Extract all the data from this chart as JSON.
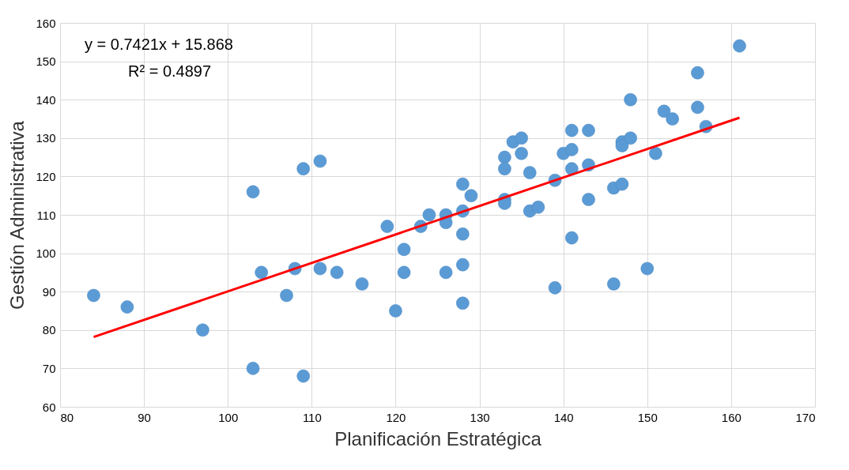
{
  "chart_data": {
    "type": "scatter",
    "xlabel": "Planificación Estratégica",
    "ylabel": "Gestión Administrativa",
    "annotations": [
      "y = 0.7421x + 15.868",
      "R² = 0.4897"
    ],
    "xlim": [
      80,
      170
    ],
    "xticks": [
      80,
      90,
      100,
      110,
      120,
      130,
      140,
      150,
      160,
      170
    ],
    "ylim": [
      60,
      160
    ],
    "yticks": [
      60,
      70,
      80,
      90,
      100,
      110,
      120,
      130,
      140,
      150,
      160
    ],
    "grid": true,
    "series": [
      {
        "marker": "circle",
        "color": "#5b9bd5",
        "x": [
          84,
          88,
          97,
          103,
          103,
          104,
          107,
          108,
          109,
          109,
          111,
          111,
          113,
          116,
          119,
          120,
          121,
          121,
          123,
          124,
          126,
          126,
          126,
          128,
          128,
          128,
          128,
          128,
          129,
          133,
          133,
          133,
          133,
          134,
          135,
          135,
          136,
          136,
          137,
          139,
          139,
          140,
          141,
          141,
          141,
          141,
          143,
          143,
          143,
          146,
          146,
          147,
          147,
          147,
          148,
          148,
          150,
          151,
          152,
          153,
          156,
          156,
          157,
          161
        ],
        "values": [
          89,
          86,
          80,
          116,
          70,
          95,
          89,
          96,
          122,
          68,
          124,
          96,
          95,
          92,
          107,
          85,
          101,
          95,
          107,
          110,
          110,
          108,
          95,
          118,
          111,
          105,
          97,
          87,
          115,
          125,
          122,
          114,
          113,
          129,
          130,
          126,
          121,
          111,
          112,
          119,
          91,
          126,
          132,
          127,
          122,
          104,
          132,
          123,
          114,
          117,
          92,
          129,
          128,
          118,
          140,
          130,
          96,
          126,
          137,
          135,
          147,
          138,
          133,
          154
        ]
      },
      {
        "type": "line",
        "color": "#ff0000",
        "x": [
          84,
          161
        ],
        "values": [
          78.2,
          135.3
        ]
      }
    ]
  }
}
